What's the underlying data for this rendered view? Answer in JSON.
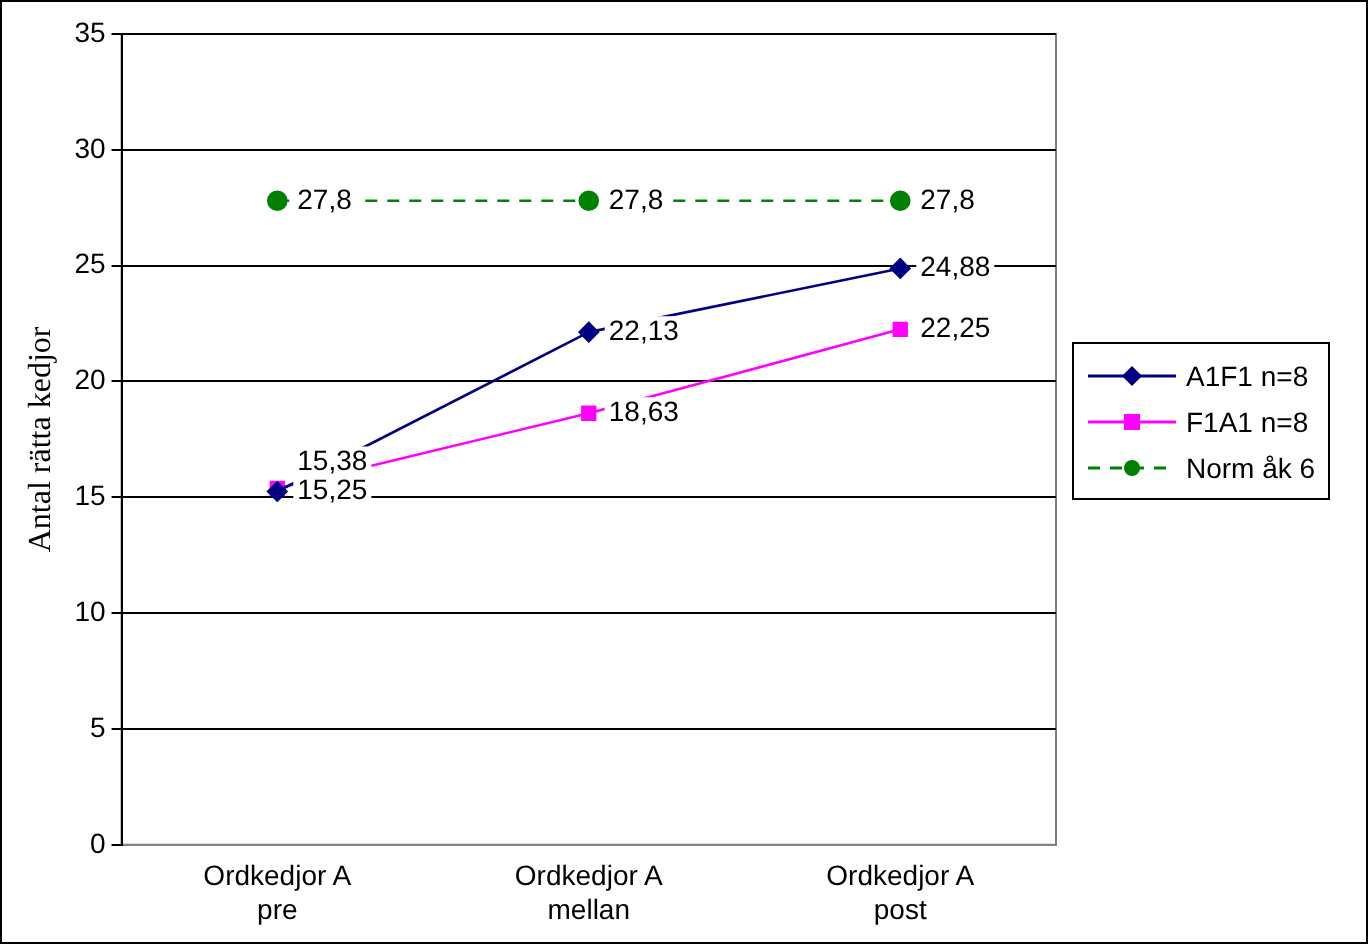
{
  "chart_data": {
    "type": "line",
    "ylabel": "Antal rätta kedjor",
    "categories": [
      "Ordkedjor A pre",
      "Ordkedjor A mellan",
      "Ordkedjor A post"
    ],
    "series": [
      {
        "name": "A1F1 n=8",
        "color": "#000080",
        "values": [
          15.25,
          22.13,
          24.88
        ],
        "value_labels": [
          "15,25",
          "22,13",
          "24,88"
        ],
        "marker": "diamond",
        "line_style": "solid"
      },
      {
        "name": "F1A1 n=8",
        "color": "#ff00ff",
        "values": [
          15.38,
          18.63,
          22.25
        ],
        "value_labels": [
          "15,38",
          "18,63",
          "22,25"
        ],
        "marker": "square",
        "line_style": "solid"
      },
      {
        "name": "Norm åk 6",
        "color": "#008000",
        "values": [
          27.8,
          27.8,
          27.8
        ],
        "value_labels": [
          "27,8",
          "27,8",
          "27,8"
        ],
        "marker": "circle",
        "line_style": "dashed"
      }
    ],
    "ylim": [
      0,
      35
    ],
    "yticks": [
      0,
      5,
      10,
      15,
      20,
      25,
      30,
      35
    ],
    "grid": "y",
    "legend": "right"
  }
}
